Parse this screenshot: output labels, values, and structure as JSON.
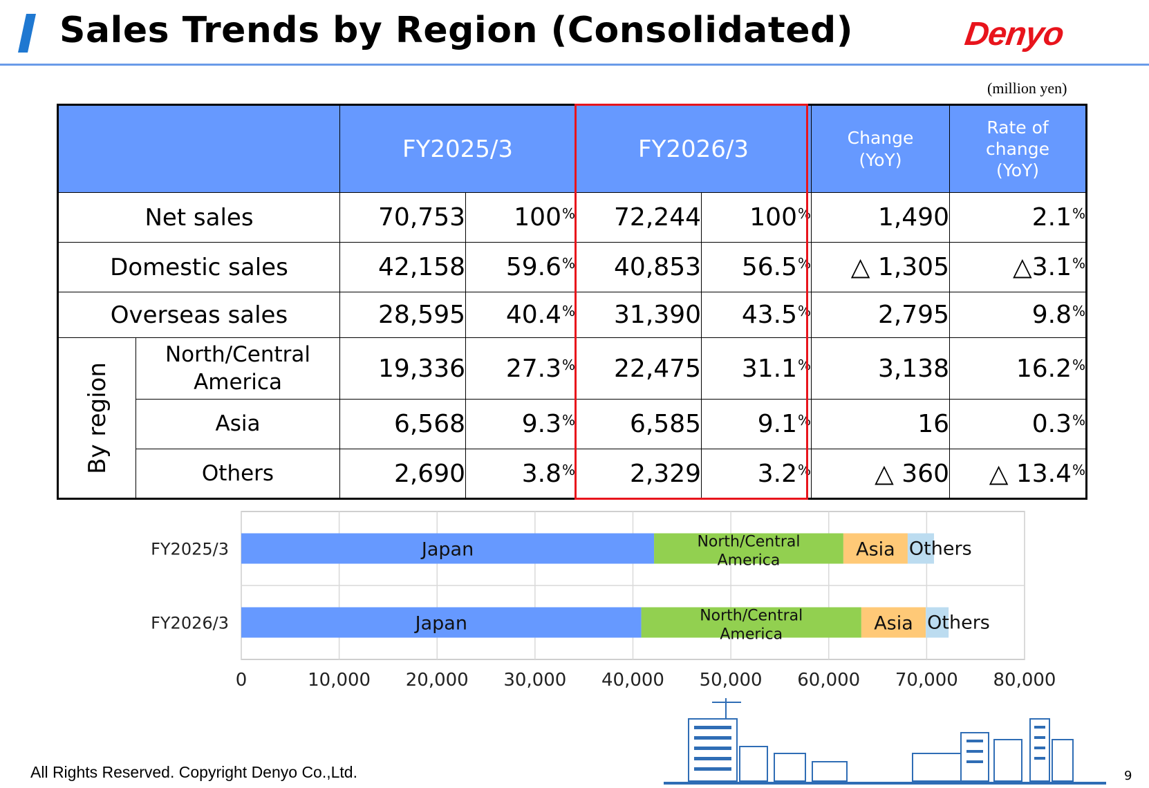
{
  "header": {
    "title": "Sales Trends by Region (Consolidated)",
    "logo_text": "Denyo",
    "unit": "(million yen)"
  },
  "table": {
    "columns": {
      "fy_prev": "FY2025/3",
      "fy_curr": "FY2026/3",
      "change_l1": "Change",
      "change_l2": "(YoY)",
      "rate_l1": "Rate of",
      "rate_l2": "change",
      "rate_l3": "(YoY)"
    },
    "group_label": "By region",
    "rows": [
      {
        "label": "Net sales",
        "prev": "70,753",
        "prev_pct": "100",
        "curr": "72,244",
        "curr_pct": "100",
        "change": "1,490",
        "rate": "2.1"
      },
      {
        "label": "Domestic sales",
        "prev": "42,158",
        "prev_pct": "59.6",
        "curr": "40,853",
        "curr_pct": "56.5",
        "change": "△ 1,305",
        "rate": "△3.1"
      },
      {
        "label": "Overseas sales",
        "prev": "28,595",
        "prev_pct": "40.4",
        "curr": "31,390",
        "curr_pct": "43.5",
        "change": "2,795",
        "rate": "9.8"
      },
      {
        "label_l1": "North/Central",
        "label_l2": "America",
        "prev": "19,336",
        "prev_pct": "27.3",
        "curr": "22,475",
        "curr_pct": "31.1",
        "change": "3,138",
        "rate": "16.2"
      },
      {
        "label": "Asia",
        "prev": "6,568",
        "prev_pct": "9.3",
        "curr": "6,585",
        "curr_pct": "9.1",
        "change": "16",
        "rate": "0.3"
      },
      {
        "label": "Others",
        "prev": "2,690",
        "prev_pct": "3.8",
        "curr": "2,329",
        "curr_pct": "3.2",
        "change": "△ 360",
        "rate": "△ 13.4"
      }
    ],
    "percent_symbol": "%"
  },
  "chart_data": {
    "type": "bar",
    "orientation": "horizontal",
    "stacked": true,
    "categories": [
      "FY2025/3",
      "FY2026/3"
    ],
    "series": [
      {
        "name": "Japan",
        "values": [
          42158,
          40853
        ],
        "color": "#6699ff"
      },
      {
        "name": "North/Central America",
        "label_l1": "North/Central",
        "label_l2": "America",
        "values": [
          19336,
          22475
        ],
        "color": "#92d050"
      },
      {
        "name": "Asia",
        "values": [
          6568,
          6585
        ],
        "color": "#ffc977"
      },
      {
        "name": "Others",
        "values": [
          2690,
          2329
        ],
        "color": "#bcdcf0"
      }
    ],
    "xlim": [
      0,
      80000
    ],
    "xticks": [
      0,
      10000,
      20000,
      30000,
      40000,
      50000,
      60000,
      70000,
      80000
    ],
    "xtick_labels": [
      "0",
      "10,000",
      "20,000",
      "30,000",
      "40,000",
      "50,000",
      "60,000",
      "70,000",
      "80,000"
    ],
    "grid": true
  },
  "footer": {
    "copyright": "All Rights Reserved. Copyright Denyo Co.,Ltd.",
    "page": "9"
  },
  "colors": {
    "header_fill": "#6699ff",
    "highlight_border": "#e8141c",
    "brand_red": "#e8141c",
    "rule_blue": "#6a9be8"
  }
}
